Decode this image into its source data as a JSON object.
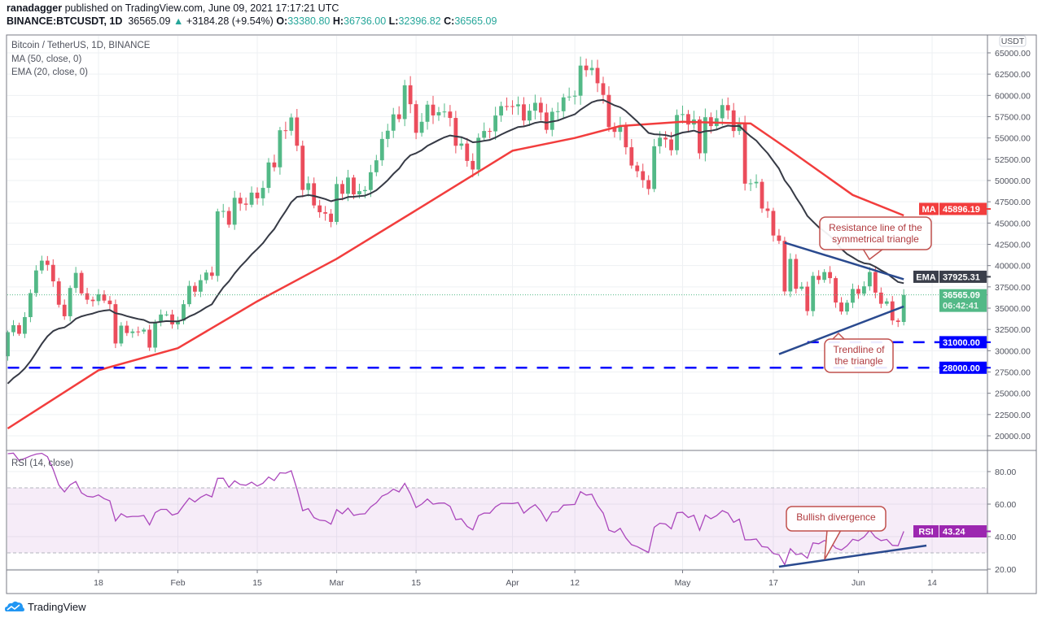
{
  "header": {
    "author": "ranadagger",
    "published": "published on TradingView.com, June 09, 2021 17:17:21 UTC",
    "symbol": "BINANCE:BTCUSDT, 1D",
    "last": "36565.09",
    "change": "+3184.28 (+9.54%)",
    "o_label": "O:",
    "o": "33380.80",
    "h_label": "H:",
    "h": "36736.00",
    "l_label": "L:",
    "l": "32396.82",
    "c_label": "C:",
    "c": "36565.09"
  },
  "legend": {
    "title": "Bitcoin / TetherUS, 1D, BINANCE",
    "ma": "MA (50, close, 0)",
    "ema": "EMA (20, close, 0)",
    "rsi": "RSI (14, close)"
  },
  "footer": {
    "brand": "TradingView"
  },
  "colors": {
    "up": "#53b987",
    "down": "#eb4d5c",
    "ma": "#f23d3d",
    "ema": "#363a45",
    "rsi": "#ab47bc",
    "trend": "#2a4a8f",
    "level": "#0000ff"
  },
  "chart_data": {
    "type": "candlestick",
    "currency": "USDT",
    "start_date": "2021-01-02",
    "first_open": 29350,
    "closes": [
      32178,
      33000,
      31988,
      33949,
      36769,
      39432,
      40582,
      40088,
      38150,
      35404,
      34051,
      37371,
      39144,
      36742,
      35994,
      35828,
      36631,
      35891,
      35468,
      30850,
      32945,
      32078,
      32259,
      32254,
      32467,
      30366,
      33364,
      34252,
      34262,
      33092,
      33526,
      35466,
      37618,
      36936,
      38290,
      39186,
      38795,
      46374,
      46420,
      44807,
      47969,
      47287,
      47153,
      48577,
      47911,
      49133,
      52119,
      51552,
      55906,
      55841,
      57408,
      54087,
      48891,
      49676,
      47073,
      46276,
      46106,
      45135,
      49587,
      48440,
      50349,
      48374,
      48751,
      48882,
      50971,
      52375,
      54884,
      55851,
      57773,
      57221,
      61188,
      58968,
      55605,
      56900,
      58912,
      57648,
      58030,
      58102,
      57351,
      54083,
      54340,
      52303,
      51293,
      55025,
      55817,
      55777,
      57635,
      58746,
      58740,
      58720,
      58950,
      57051,
      58202,
      59129,
      57991,
      55953,
      58077,
      58142,
      59769,
      59860,
      59964,
      63503,
      62963,
      63229,
      61427,
      60059,
      56275,
      55715,
      56473,
      53907,
      51762,
      51094,
      50050,
      49004,
      54022,
      55033,
      54824,
      53555,
      57694,
      57800,
      56578,
      57169,
      53200,
      57436,
      56393,
      57314,
      58862,
      58240,
      55816,
      56670,
      49631,
      49670,
      49841,
      46708,
      46426,
      43537,
      42909,
      36964,
      40784,
      37280,
      37528,
      34655,
      38796,
      38324,
      39241,
      38529,
      35663,
      34605,
      35641,
      37253,
      36693,
      37568,
      39246,
      36829,
      35514,
      35796,
      33552,
      33380,
      36565.09
    ],
    "ma50": [
      [
        "2021-01-02",
        20860
      ],
      [
        "2021-01-18",
        27700
      ],
      [
        "2021-02-01",
        30300
      ],
      [
        "2021-02-15",
        35800
      ],
      [
        "2021-03-01",
        40800
      ],
      [
        "2021-03-15",
        46500
      ],
      [
        "2021-04-01",
        53500
      ],
      [
        "2021-04-12",
        55000
      ],
      [
        "2021-04-20",
        56400
      ],
      [
        "2021-05-01",
        56900
      ],
      [
        "2021-05-13",
        56700
      ],
      [
        "2021-05-20",
        53500
      ],
      [
        "2021-05-31",
        48300
      ],
      [
        "2021-06-09",
        45896.19
      ]
    ],
    "ema20_seed": 25500,
    "y_ticks": [
      65000,
      62500,
      60000,
      57500,
      55000,
      52500,
      50000,
      47500,
      45000,
      42500,
      40000,
      37500,
      35000,
      32500,
      30000,
      27500,
      25000,
      22500,
      20000
    ],
    "x_ticks": [
      {
        "label": "18",
        "date": "2021-01-18"
      },
      {
        "label": "Feb",
        "date": "2021-02-01"
      },
      {
        "label": "15",
        "date": "2021-02-15"
      },
      {
        "label": "Mar",
        "date": "2021-03-01"
      },
      {
        "label": "15",
        "date": "2021-03-15"
      },
      {
        "label": "Apr",
        "date": "2021-04-01"
      },
      {
        "label": "12",
        "date": "2021-04-12"
      },
      {
        "label": "May",
        "date": "2021-05-01"
      },
      {
        "label": "17",
        "date": "2021-05-17"
      },
      {
        "label": "Jun",
        "date": "2021-06-01"
      },
      {
        "label": "14",
        "date": "2021-06-14"
      }
    ],
    "rsi_ticks": [
      "80.00",
      "60.00",
      "40.00",
      "20.00"
    ],
    "rsi_band": [
      30,
      70
    ],
    "labels": {
      "ma": {
        "tag": "MA",
        "value": "45896.19"
      },
      "ema": {
        "tag": "EMA",
        "value": "37925.31"
      },
      "last": {
        "value": "36565.09",
        "countdown": "06:42:41"
      },
      "level1": {
        "value": "31000.00"
      },
      "level2": {
        "value": "28000.00"
      },
      "rsi": {
        "tag": "RSI",
        "value": "43.24"
      }
    },
    "levels": [
      {
        "price": 31000,
        "from": "2021-05-23"
      },
      {
        "price": 28000,
        "from": "2021-01-02"
      }
    ],
    "trendlines": [
      {
        "name": "triangle-resistance",
        "p1": [
          "2021-05-19",
          42700
        ],
        "p2": [
          "2021-06-09",
          38400
        ]
      },
      {
        "name": "triangle-support",
        "p1": [
          "2021-05-18",
          29600
        ],
        "p2": [
          "2021-06-09",
          35200
        ]
      }
    ],
    "rsi_trendline": {
      "p1": [
        "2021-05-18",
        21.5
      ],
      "p2": [
        "2021-06-13",
        34.5
      ]
    },
    "annotations": {
      "resistance": [
        "Resistance line of the",
        "symmetrical triangle"
      ],
      "trendline": [
        "Trendline of",
        "the triangle"
      ],
      "divergence": "Bullish divergence"
    }
  }
}
